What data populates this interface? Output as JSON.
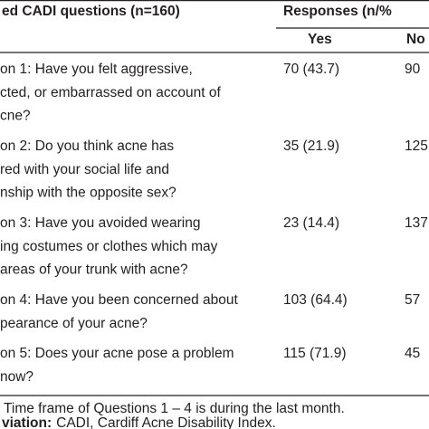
{
  "header": {
    "question": "ed CADI questions (n=160)",
    "responses": "Responses (n/%",
    "yes": "Yes",
    "no": "No"
  },
  "rows": [
    {
      "question": [
        "on 1: Have you felt aggressive,",
        "cted, or embarrassed on account of",
        "cne?"
      ],
      "yes": "70 (43.7)",
      "no": "90"
    },
    {
      "question": [
        "on 2: Do you think acne has",
        "red with your social life and",
        "nship with the opposite sex?"
      ],
      "yes": "35 (21.9)",
      "no": "125"
    },
    {
      "question": [
        "on 3: Have you avoided wearing",
        "ing costumes or clothes which may",
        " areas of your trunk with acne?"
      ],
      "yes": "23 (14.4)",
      "no": "137"
    },
    {
      "question": [
        "on 4: Have you been concerned about",
        "pearance of your acne?"
      ],
      "yes": "103 (64.4)",
      "no": "57"
    },
    {
      "question": [
        "on 5: Does your acne pose a problem",
        "now?"
      ],
      "yes": "115 (71.9)",
      "no": "45"
    }
  ],
  "footnotes": {
    "note": "Time frame of Questions 1 – 4 is during the last month.",
    "abbrev_label": "viation:",
    "abbrev_text": "CADI, Cardiff Acne Disability Index."
  }
}
